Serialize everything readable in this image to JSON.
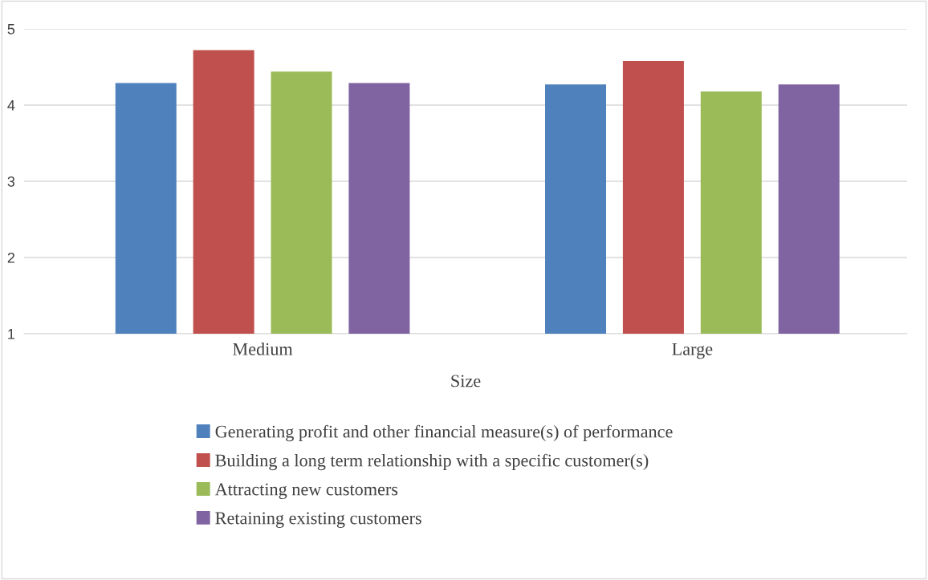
{
  "chart_data": {
    "type": "bar",
    "xlabel": "Size",
    "categories": [
      "Medium",
      "Large"
    ],
    "series": [
      {
        "name": "Generating profit and other financial measure(s) of performance",
        "color": "#4f81bd",
        "values": [
          4.29,
          4.27
        ]
      },
      {
        "name": "Building a long term relationship with a specific customer(s)",
        "color": "#c0504d",
        "values": [
          4.72,
          4.58
        ]
      },
      {
        "name": "Attracting new customers",
        "color": "#9bbb59",
        "values": [
          4.44,
          4.18
        ]
      },
      {
        "name": "Retaining existing customers",
        "color": "#8064a2",
        "values": [
          4.29,
          4.27
        ]
      }
    ],
    "ylim": [
      1,
      5
    ],
    "yticks": [
      1,
      2,
      3,
      4,
      5
    ],
    "grid": "y",
    "legend": "bottom"
  }
}
